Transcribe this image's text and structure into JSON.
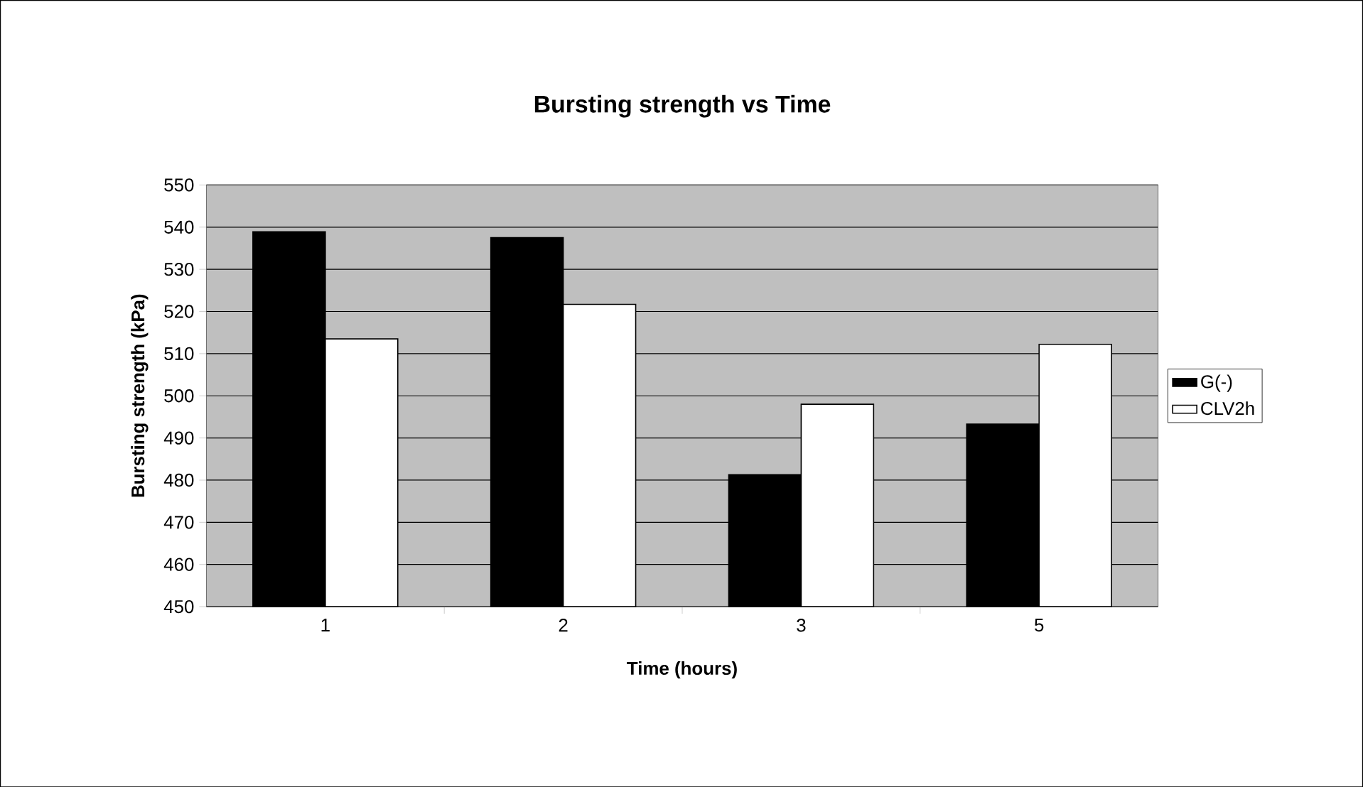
{
  "chart_data": {
    "type": "bar",
    "title": "Bursting strength vs Time",
    "xlabel": "Time (hours)",
    "ylabel": "Bursting strength  (kPa)",
    "categories": [
      "1",
      "2",
      "3",
      "5"
    ],
    "series": [
      {
        "name": "G(-)",
        "color": "#000000",
        "values": [
          538.9,
          537.5,
          481.3,
          493.3
        ]
      },
      {
        "name": "CLV2h",
        "color": "#ffffff",
        "values": [
          513.5,
          521.7,
          498.0,
          512.2
        ]
      }
    ],
    "ylim": [
      450,
      550
    ],
    "yticks": [
      450,
      460,
      470,
      480,
      490,
      500,
      510,
      520,
      530,
      540,
      550
    ],
    "grid": "y",
    "legend": "right"
  }
}
